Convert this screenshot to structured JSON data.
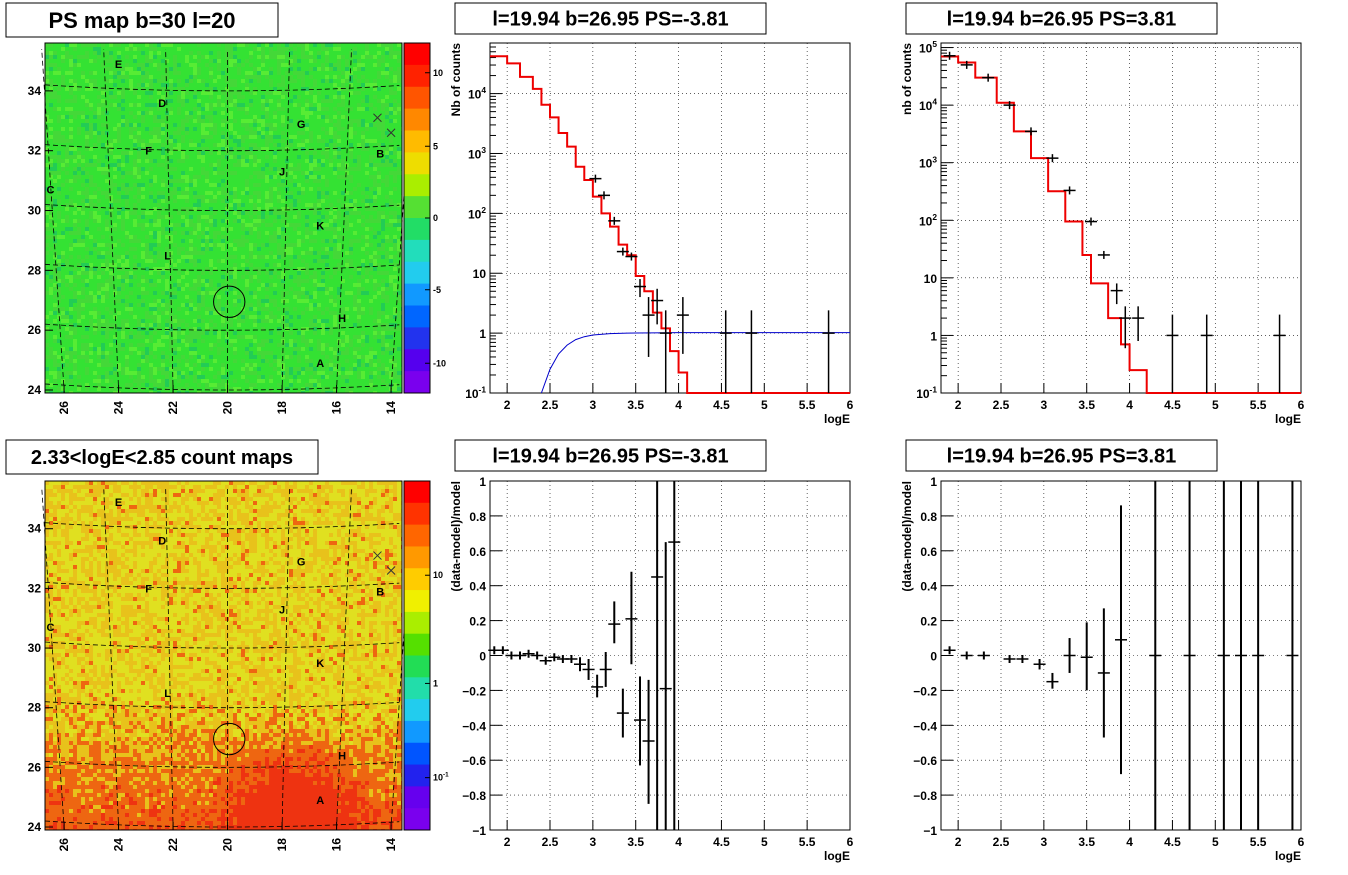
{
  "chart_data": [
    {
      "type": "heatmap",
      "title": "PS map b=30 l=20",
      "xlim": [
        26.7,
        13.6
      ],
      "ylim": [
        23.9,
        35.6
      ],
      "x_ticks": [
        "26",
        "24",
        "22",
        "20",
        "18",
        "16",
        "14"
      ],
      "y_ticks": [
        "24",
        "26",
        "28",
        "30",
        "32",
        "34"
      ],
      "colorbar": {
        "range": [
          -12.5,
          12.5
        ],
        "ticks": [
          "-10",
          "-5",
          "0",
          "5",
          "10"
        ],
        "scale": "linear"
      },
      "colors": {
        "field": "#34e233",
        "field_light": "#57ec34",
        "field_dark": "#22cc55",
        "patch": "#44d838"
      },
      "source_labels": [
        {
          "name": "E",
          "l": 24.0,
          "b": 34.9
        },
        {
          "name": "D",
          "l": 22.4,
          "b": 33.6
        },
        {
          "name": "G",
          "l": 17.3,
          "b": 32.9
        },
        {
          "name": "F",
          "l": 22.9,
          "b": 32.0
        },
        {
          "name": "B",
          "l": 14.4,
          "b": 31.9
        },
        {
          "name": "J",
          "l": 18.0,
          "b": 31.3
        },
        {
          "name": "C",
          "l": 26.5,
          "b": 30.7
        },
        {
          "name": "K",
          "l": 16.6,
          "b": 29.5
        },
        {
          "name": "L",
          "l": 22.2,
          "b": 28.5
        },
        {
          "name": "H",
          "l": 15.8,
          "b": 26.4
        },
        {
          "name": "A",
          "l": 16.6,
          "b": 24.9
        }
      ],
      "circle": {
        "l": 19.94,
        "b": 26.95,
        "r": 0.5
      },
      "crosses": [
        {
          "l": 14.5,
          "b": 33.1
        },
        {
          "l": 14.0,
          "b": 32.6
        }
      ]
    },
    {
      "type": "line",
      "title": "l=19.94 b=26.95 PS=-3.81",
      "xlabel": "logE",
      "ylabel": "Nb of counts",
      "xlim": [
        1.8,
        6
      ],
      "ylim": [
        0.1,
        70000
      ],
      "yscale": "log",
      "x_ticks": [
        "2",
        "2.5",
        "3",
        "3.5",
        "4",
        "4.5",
        "5",
        "5.5",
        "6"
      ],
      "y_ticks": [
        "10<sup>-1</sup>",
        "1",
        "10",
        "10<sup>2</sup>",
        "10<sup>3</sup>",
        "10<sup>4</sup>"
      ],
      "colors": {
        "model": "#ee0000",
        "background": "#0000cc",
        "data": "#000000"
      },
      "model_bins": {
        "edges": [
          1.8,
          2.0,
          2.15,
          2.3,
          2.4,
          2.5,
          2.6,
          2.7,
          2.8,
          2.9,
          3.0,
          3.1,
          3.2,
          3.3,
          3.4,
          3.5,
          3.6,
          3.7,
          3.8,
          3.9,
          4.0,
          4.1,
          4.25,
          6.0
        ],
        "values": [
          42000,
          32000,
          19000,
          12000,
          6500,
          4000,
          2200,
          1300,
          600,
          360,
          190,
          100,
          60,
          30,
          20,
          9,
          5,
          2.2,
          1.2,
          0.5,
          0.22,
          0.1,
          0.1
        ]
      },
      "background_curve": {
        "x": [
          2.4,
          2.5,
          2.6,
          2.7,
          2.8,
          2.9,
          3.0,
          3.2,
          3.4,
          3.7,
          4.0,
          6.0
        ],
        "y": [
          0.1,
          0.25,
          0.45,
          0.63,
          0.78,
          0.87,
          0.93,
          0.98,
          1.0,
          1.01,
          1.02,
          1.02
        ]
      },
      "data_points": [
        {
          "x": 3.03,
          "y": 380
        },
        {
          "x": 3.13,
          "y": 200
        },
        {
          "x": 3.25,
          "y": 75
        },
        {
          "x": 3.35,
          "y": 23
        },
        {
          "x": 3.45,
          "y": 19
        },
        {
          "x": 3.55,
          "y": 6,
          "lo": 4,
          "hi": 8
        },
        {
          "x": 3.65,
          "y": 2,
          "lo": 0.4,
          "hi": 4
        },
        {
          "x": 3.75,
          "y": 3.5,
          "lo": 1.4,
          "hi": 5.5
        },
        {
          "x": 3.85,
          "y": 1,
          "lo": 0.1,
          "hi": 2.4
        },
        {
          "x": 4.05,
          "y": 2,
          "lo": 0.45,
          "hi": 4
        },
        {
          "x": 4.55,
          "y": 1,
          "lo": 0.1,
          "hi": 2.4
        },
        {
          "x": 4.85,
          "y": 1,
          "lo": 0.1,
          "hi": 2.4
        },
        {
          "x": 5.75,
          "y": 1,
          "lo": 0.1,
          "hi": 2.4
        }
      ]
    },
    {
      "type": "line",
      "title": "l=19.94 b=26.95 PS=3.81",
      "xlabel": "logE",
      "ylabel": "nb of counts",
      "xlim": [
        1.8,
        6
      ],
      "ylim": [
        0.1,
        120000
      ],
      "yscale": "log",
      "x_ticks": [
        "2",
        "2.5",
        "3",
        "3.5",
        "4",
        "4.5",
        "5",
        "5.5",
        "6"
      ],
      "y_ticks": [
        "10<sup>-1</sup>",
        "1",
        "10",
        "10<sup>2</sup>",
        "10<sup>3</sup>",
        "10<sup>4</sup>",
        "10<sup>5</sup>"
      ],
      "colors": {
        "model": "#ee0000",
        "data": "#000000"
      },
      "model_bins": {
        "edges": [
          1.8,
          2.0,
          2.2,
          2.45,
          2.65,
          2.85,
          3.05,
          3.25,
          3.45,
          3.55,
          3.75,
          3.9,
          4.0,
          4.2,
          6.0
        ],
        "values": [
          70000,
          55000,
          30000,
          11000,
          3500,
          1200,
          320,
          95,
          25,
          8,
          2,
          0.7,
          0.25,
          0.1
        ]
      },
      "data_points": [
        {
          "x": 1.9,
          "y": 72000
        },
        {
          "x": 2.1,
          "y": 50000
        },
        {
          "x": 2.35,
          "y": 30000
        },
        {
          "x": 2.6,
          "y": 10000
        },
        {
          "x": 2.85,
          "y": 3500
        },
        {
          "x": 3.1,
          "y": 1200
        },
        {
          "x": 3.3,
          "y": 330
        },
        {
          "x": 3.55,
          "y": 95
        },
        {
          "x": 3.7,
          "y": 25
        },
        {
          "x": 3.85,
          "y": 6,
          "lo": 3.5,
          "hi": 8
        },
        {
          "x": 3.95,
          "y": 2,
          "lo": 0.6,
          "hi": 3.2
        },
        {
          "x": 4.1,
          "y": 2,
          "lo": 0.8,
          "hi": 3.2
        },
        {
          "x": 4.5,
          "y": 1,
          "lo": 0.1,
          "hi": 2.3
        },
        {
          "x": 4.9,
          "y": 1,
          "lo": 0.1,
          "hi": 2.3
        },
        {
          "x": 5.75,
          "y": 1,
          "lo": 0.1,
          "hi": 2.3
        }
      ]
    },
    {
      "type": "heatmap",
      "title": "2.33<logE<2.85 count maps",
      "xlim": [
        26.7,
        13.6
      ],
      "ylim": [
        23.9,
        35.6
      ],
      "x_ticks": [
        "26",
        "24",
        "22",
        "20",
        "18",
        "16",
        "14"
      ],
      "y_ticks": [
        "24",
        "26",
        "28",
        "30",
        "32",
        "34"
      ],
      "colorbar": {
        "scale": "log",
        "ticks": [
          "10",
          "1",
          "10<sup>-1</sup>"
        ]
      },
      "colors": {
        "field": "#e8c21b",
        "field_light": "#e0e020",
        "field_hot": "#ee6611",
        "field_red": "#ee3311"
      },
      "source_labels": [
        {
          "name": "E",
          "l": 24.0,
          "b": 34.9
        },
        {
          "name": "D",
          "l": 22.4,
          "b": 33.6
        },
        {
          "name": "G",
          "l": 17.3,
          "b": 32.9
        },
        {
          "name": "F",
          "l": 22.9,
          "b": 32.0
        },
        {
          "name": "B",
          "l": 14.4,
          "b": 31.9
        },
        {
          "name": "J",
          "l": 18.0,
          "b": 31.3
        },
        {
          "name": "C",
          "l": 26.5,
          "b": 30.7
        },
        {
          "name": "K",
          "l": 16.6,
          "b": 29.5
        },
        {
          "name": "L",
          "l": 22.2,
          "b": 28.5
        },
        {
          "name": "H",
          "l": 15.8,
          "b": 26.4
        },
        {
          "name": "A",
          "l": 16.6,
          "b": 24.9
        }
      ],
      "circle": {
        "l": 19.94,
        "b": 26.95,
        "r": 0.5
      },
      "crosses": [
        {
          "l": 14.5,
          "b": 33.1
        },
        {
          "l": 14.0,
          "b": 32.6
        }
      ]
    },
    {
      "type": "scatter",
      "title": "l=19.94 b=26.95 PS=-3.81",
      "xlabel": "logE",
      "ylabel": "(data-model)/model",
      "xlim": [
        1.8,
        6
      ],
      "ylim": [
        -1,
        1
      ],
      "x_ticks": [
        "2",
        "2.5",
        "3",
        "3.5",
        "4",
        "4.5",
        "5",
        "5.5",
        "6"
      ],
      "y_ticks": [
        "−1",
        "−0.8",
        "−0.6",
        "−0.4",
        "−0.2",
        "0",
        "0.2",
        "0.4",
        "0.6",
        "0.8",
        "1"
      ],
      "data_points": [
        {
          "x": 1.85,
          "y": 0.03
        },
        {
          "x": 1.95,
          "y": 0.03
        },
        {
          "x": 2.05,
          "y": 0.0
        },
        {
          "x": 2.15,
          "y": 0.0
        },
        {
          "x": 2.25,
          "y": 0.01
        },
        {
          "x": 2.35,
          "y": 0.0
        },
        {
          "x": 2.45,
          "y": -0.03
        },
        {
          "x": 2.55,
          "y": -0.01
        },
        {
          "x": 2.65,
          "y": -0.02
        },
        {
          "x": 2.75,
          "y": -0.02
        },
        {
          "x": 2.85,
          "y": -0.05,
          "lo": -0.09,
          "hi": -0.01
        },
        {
          "x": 2.95,
          "y": -0.08,
          "lo": -0.14,
          "hi": -0.02
        },
        {
          "x": 3.05,
          "y": -0.18,
          "lo": -0.24,
          "hi": -0.11
        },
        {
          "x": 3.15,
          "y": -0.08,
          "lo": -0.18,
          "hi": 0.02
        },
        {
          "x": 3.25,
          "y": 0.18,
          "lo": 0.07,
          "hi": 0.31
        },
        {
          "x": 3.35,
          "y": -0.33,
          "lo": -0.47,
          "hi": -0.19
        },
        {
          "x": 3.45,
          "y": 0.21,
          "lo": -0.05,
          "hi": 0.48
        },
        {
          "x": 3.55,
          "y": -0.37,
          "lo": -0.63,
          "hi": -0.12
        },
        {
          "x": 3.65,
          "y": -0.49,
          "lo": -0.85,
          "hi": -0.14
        },
        {
          "x": 3.75,
          "y": 0.45,
          "lo": -1.0,
          "hi": 1.0
        },
        {
          "x": 3.85,
          "y": -0.19,
          "lo": -1.0,
          "hi": 0.65
        },
        {
          "x": 3.95,
          "y": 0.65,
          "lo": -1.0,
          "hi": 1.0
        }
      ]
    },
    {
      "type": "scatter",
      "title": "l=19.94 b=26.95 PS=3.81",
      "xlabel": "logE",
      "ylabel": "(data-model)/model",
      "xlim": [
        1.8,
        6
      ],
      "ylim": [
        -1,
        1
      ],
      "x_ticks": [
        "2",
        "2.5",
        "3",
        "3.5",
        "4",
        "4.5",
        "5",
        "5.5",
        "6"
      ],
      "y_ticks": [
        "−1",
        "−0.8",
        "−0.6",
        "−0.4",
        "−0.2",
        "0",
        "0.2",
        "0.4",
        "0.6",
        "0.8",
        "1"
      ],
      "data_points": [
        {
          "x": 1.9,
          "y": 0.03
        },
        {
          "x": 2.1,
          "y": 0.0
        },
        {
          "x": 2.3,
          "y": 0.0
        },
        {
          "x": 2.6,
          "y": -0.02
        },
        {
          "x": 2.75,
          "y": -0.02
        },
        {
          "x": 2.95,
          "y": -0.05,
          "lo": -0.08,
          "hi": -0.02
        },
        {
          "x": 3.1,
          "y": -0.15,
          "lo": -0.19,
          "hi": -0.1
        },
        {
          "x": 3.3,
          "y": 0.0,
          "lo": -0.1,
          "hi": 0.1
        },
        {
          "x": 3.5,
          "y": -0.01,
          "lo": -0.2,
          "hi": 0.19
        },
        {
          "x": 3.7,
          "y": -0.1,
          "lo": -0.47,
          "hi": 0.27
        },
        {
          "x": 3.9,
          "y": 0.09,
          "lo": -0.68,
          "hi": 0.86
        },
        {
          "x": 4.3,
          "y": 0,
          "lo": -1.0,
          "hi": 1.0
        },
        {
          "x": 4.7,
          "y": 0,
          "lo": -1.0,
          "hi": 1.0
        },
        {
          "x": 5.1,
          "y": 0,
          "lo": -1.0,
          "hi": 1.0
        },
        {
          "x": 5.3,
          "y": 0,
          "lo": -1.0,
          "hi": 1.0
        },
        {
          "x": 5.5,
          "y": 0,
          "lo": -1.0,
          "hi": 1.0
        },
        {
          "x": 5.9,
          "y": 0,
          "lo": -1.0,
          "hi": 1.0
        }
      ]
    }
  ]
}
